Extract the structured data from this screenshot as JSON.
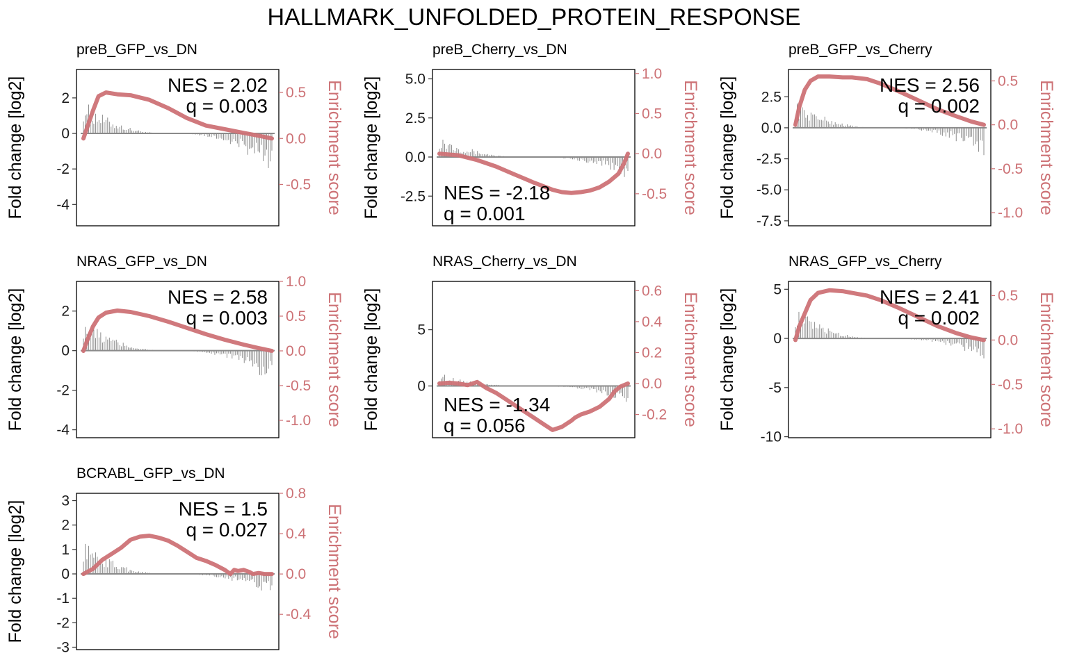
{
  "figure": {
    "title": "HALLMARK_UNFOLDED_PROTEIN_RESPONSE"
  },
  "colors": {
    "enrichment": "#cd7276",
    "bars": "#808080",
    "zero_line": "#8a8a8a",
    "frame": "#000000"
  },
  "chart_data": [
    {
      "type": "line",
      "title": "preB_GFP_vs_DN",
      "ylabel_left": "Fold change [log2]",
      "ylabel_right": "Enrichment score",
      "ylim_left": [
        -5.2,
        3.6
      ],
      "ylim_right": [
        -0.95,
        0.75
      ],
      "yticks_left": [
        2,
        0,
        -2,
        -4
      ],
      "yticks_left_labels": [
        "2",
        "0",
        "-2",
        "-4"
      ],
      "yticks_right": [
        0.5,
        0.0,
        -0.5
      ],
      "yticks_right_labels": [
        "0.5",
        "0.0",
        "-0.5"
      ],
      "nes_label": "NES = 2.02",
      "q_label": "q = 0.003",
      "annot_pos": "top-right",
      "running_es": {
        "x": [
          0,
          0.02,
          0.05,
          0.08,
          0.12,
          0.18,
          0.25,
          0.35,
          0.45,
          0.55,
          0.65,
          0.75,
          0.85,
          0.93,
          1.0
        ],
        "y": [
          0.0,
          0.12,
          0.3,
          0.46,
          0.5,
          0.48,
          0.47,
          0.42,
          0.33,
          0.22,
          0.14,
          0.1,
          0.06,
          0.03,
          0.0
        ]
      },
      "fold_change": {
        "lead": 1.9,
        "tail": -2.5
      }
    },
    {
      "type": "line",
      "title": "preB_Cherry_vs_DN",
      "ylabel_left": "Fold change [log2]",
      "ylabel_right": "Enrichment score",
      "ylim_left": [
        -4.4,
        5.6
      ],
      "ylim_right": [
        -0.9,
        1.05
      ],
      "yticks_left": [
        5.0,
        2.5,
        0.0,
        -2.5
      ],
      "yticks_left_labels": [
        "5.0",
        "2.5",
        "0.0",
        "-2.5"
      ],
      "yticks_right": [
        1.0,
        0.5,
        0.0,
        -0.5
      ],
      "yticks_right_labels": [
        "1.0",
        "0.5",
        "0.0",
        "-0.5"
      ],
      "nes_label": "NES = -2.18",
      "q_label": "q = 0.001",
      "annot_pos": "bottom-left",
      "running_es": {
        "x": [
          0,
          0.1,
          0.2,
          0.3,
          0.4,
          0.5,
          0.6,
          0.65,
          0.7,
          0.75,
          0.8,
          0.85,
          0.9,
          0.95,
          0.98,
          1.0
        ],
        "y": [
          0.0,
          -0.02,
          -0.08,
          -0.16,
          -0.26,
          -0.36,
          -0.45,
          -0.48,
          -0.49,
          -0.48,
          -0.46,
          -0.42,
          -0.35,
          -0.25,
          -0.12,
          0.0
        ]
      },
      "fold_change": {
        "lead": 1.5,
        "tail": -1.4
      }
    },
    {
      "type": "line",
      "title": "preB_GFP_vs_Cherry",
      "ylabel_left": "Fold change [log2]",
      "ylabel_right": "Enrichment score",
      "ylim_left": [
        -7.9,
        4.7
      ],
      "ylim_right": [
        -1.15,
        0.63
      ],
      "yticks_left": [
        2.5,
        0.0,
        -2.5,
        -5.0,
        -7.5
      ],
      "yticks_left_labels": [
        "2.5",
        "0.0",
        "-2.5",
        "-5.0",
        "-7.5"
      ],
      "yticks_right": [
        0.5,
        0.0,
        -0.5,
        -1.0
      ],
      "yticks_right_labels": [
        "0.5",
        "0.0",
        "-0.5",
        "-1.0"
      ],
      "nes_label": "NES = 2.56",
      "q_label": "q = 0.002",
      "annot_pos": "top-right",
      "running_es": {
        "x": [
          0,
          0.02,
          0.05,
          0.08,
          0.12,
          0.18,
          0.25,
          0.3,
          0.38,
          0.45,
          0.55,
          0.65,
          0.75,
          0.85,
          0.93,
          1.0
        ],
        "y": [
          0.0,
          0.2,
          0.4,
          0.5,
          0.55,
          0.55,
          0.54,
          0.54,
          0.52,
          0.47,
          0.38,
          0.28,
          0.18,
          0.1,
          0.04,
          0.0
        ]
      },
      "fold_change": {
        "lead": 2.3,
        "tail": -2.5
      }
    },
    {
      "type": "line",
      "title": "NRAS_GFP_vs_DN",
      "ylabel_left": "Fold change [log2]",
      "ylabel_right": "Enrichment score",
      "ylim_left": [
        -4.4,
        3.5
      ],
      "ylim_right": [
        -1.25,
        1.0
      ],
      "yticks_left": [
        2,
        0,
        -2,
        -4
      ],
      "yticks_left_labels": [
        "2",
        "0",
        "-2",
        "-4"
      ],
      "yticks_right": [
        1.0,
        0.5,
        0.0,
        -0.5,
        -1.0
      ],
      "yticks_right_labels": [
        "1.0",
        "0.5",
        "0.0",
        "-0.5",
        "-1.0"
      ],
      "nes_label": "NES = 2.58",
      "q_label": "q = 0.003",
      "annot_pos": "top-right",
      "running_es": {
        "x": [
          0,
          0.02,
          0.05,
          0.08,
          0.12,
          0.18,
          0.25,
          0.35,
          0.45,
          0.55,
          0.65,
          0.75,
          0.85,
          0.93,
          1.0
        ],
        "y": [
          0.0,
          0.15,
          0.35,
          0.48,
          0.55,
          0.58,
          0.56,
          0.5,
          0.42,
          0.33,
          0.24,
          0.16,
          0.09,
          0.04,
          0.0
        ]
      },
      "fold_change": {
        "lead": 1.7,
        "tail": -1.7
      }
    },
    {
      "type": "line",
      "title": "NRAS_Cherry_vs_DN",
      "ylabel_left": "Fold change [log2]",
      "ylabel_right": "Enrichment score",
      "ylim_left": [
        -4.6,
        9.3
      ],
      "ylim_right": [
        -0.35,
        0.66
      ],
      "yticks_left": [
        5,
        0
      ],
      "yticks_left_labels": [
        "5",
        "0"
      ],
      "yticks_right": [
        0.6,
        0.4,
        0.2,
        0.0,
        -0.2
      ],
      "yticks_right_labels": [
        "0.6",
        "0.4",
        "0.2",
        "0.0",
        "-0.2"
      ],
      "nes_label": "NES = -1.34",
      "q_label": "q = 0.056",
      "annot_pos": "bottom-left",
      "running_es": {
        "x": [
          0,
          0.05,
          0.1,
          0.15,
          0.2,
          0.25,
          0.3,
          0.35,
          0.4,
          0.45,
          0.5,
          0.55,
          0.6,
          0.65,
          0.7,
          0.72,
          0.75,
          0.8,
          0.85,
          0.9,
          0.93,
          0.96,
          1.0
        ],
        "y": [
          0.0,
          0.005,
          0.0,
          -0.01,
          0.01,
          -0.03,
          -0.06,
          -0.1,
          -0.14,
          -0.18,
          -0.22,
          -0.26,
          -0.3,
          -0.28,
          -0.24,
          -0.22,
          -0.2,
          -0.18,
          -0.15,
          -0.1,
          -0.05,
          -0.02,
          0.0
        ]
      },
      "fold_change": {
        "lead": 1.2,
        "tail": -1.6
      }
    },
    {
      "type": "line",
      "title": "NRAS_GFP_vs_Cherry",
      "ylabel_left": "Fold change [log2]",
      "ylabel_right": "Enrichment score",
      "ylim_left": [
        -10.1,
        5.8
      ],
      "ylim_right": [
        -1.1,
        0.66
      ],
      "yticks_left": [
        5,
        0,
        -5,
        -10
      ],
      "yticks_left_labels": [
        "5",
        "0",
        "-5",
        "-10"
      ],
      "yticks_right": [
        0.5,
        0.0,
        -0.5,
        -1.0
      ],
      "yticks_right_labels": [
        "0.5",
        "0.0",
        "-0.5",
        "-1.0"
      ],
      "nes_label": "NES = 2.41",
      "q_label": "q = 0.002",
      "annot_pos": "top-right",
      "running_es": {
        "x": [
          0,
          0.02,
          0.05,
          0.08,
          0.12,
          0.18,
          0.25,
          0.3,
          0.38,
          0.45,
          0.55,
          0.65,
          0.75,
          0.85,
          0.93,
          1.0
        ],
        "y": [
          0.0,
          0.15,
          0.3,
          0.45,
          0.53,
          0.56,
          0.55,
          0.53,
          0.5,
          0.45,
          0.36,
          0.26,
          0.16,
          0.08,
          0.03,
          0.0
        ]
      },
      "fold_change": {
        "lead": 3.2,
        "tail": -2.2
      }
    },
    {
      "type": "line",
      "title": "BCRABL_GFP_vs_DN",
      "ylabel_left": "Fold change [log2]",
      "ylabel_right": "Enrichment score",
      "ylim_left": [
        -3.1,
        3.3
      ],
      "ylim_right": [
        -0.75,
        0.8
      ],
      "yticks_left": [
        3,
        2,
        1,
        0,
        -1,
        -2,
        -3
      ],
      "yticks_left_labels": [
        "3",
        "2",
        "1",
        "0",
        "-1",
        "-2",
        "-3"
      ],
      "yticks_right": [
        0.8,
        0.4,
        0.0,
        -0.4
      ],
      "yticks_right_labels": [
        "0.8",
        "0.4",
        "0.0",
        "-0.4"
      ],
      "nes_label": "NES = 1.5",
      "q_label": "q = 0.027",
      "annot_pos": "top-right",
      "running_es": {
        "x": [
          0,
          0.05,
          0.1,
          0.15,
          0.2,
          0.25,
          0.3,
          0.35,
          0.4,
          0.45,
          0.5,
          0.55,
          0.6,
          0.65,
          0.7,
          0.75,
          0.78,
          0.8,
          0.82,
          0.85,
          0.88,
          0.9,
          0.93,
          0.96,
          1.0
        ],
        "y": [
          0.0,
          0.05,
          0.14,
          0.2,
          0.26,
          0.34,
          0.37,
          0.38,
          0.36,
          0.33,
          0.28,
          0.22,
          0.16,
          0.13,
          0.09,
          0.04,
          0.0,
          0.04,
          0.03,
          0.04,
          0.02,
          0.0,
          0.01,
          0.0,
          0.0
        ]
      },
      "fold_change": {
        "lead": 1.4,
        "tail": -1.0
      }
    }
  ]
}
